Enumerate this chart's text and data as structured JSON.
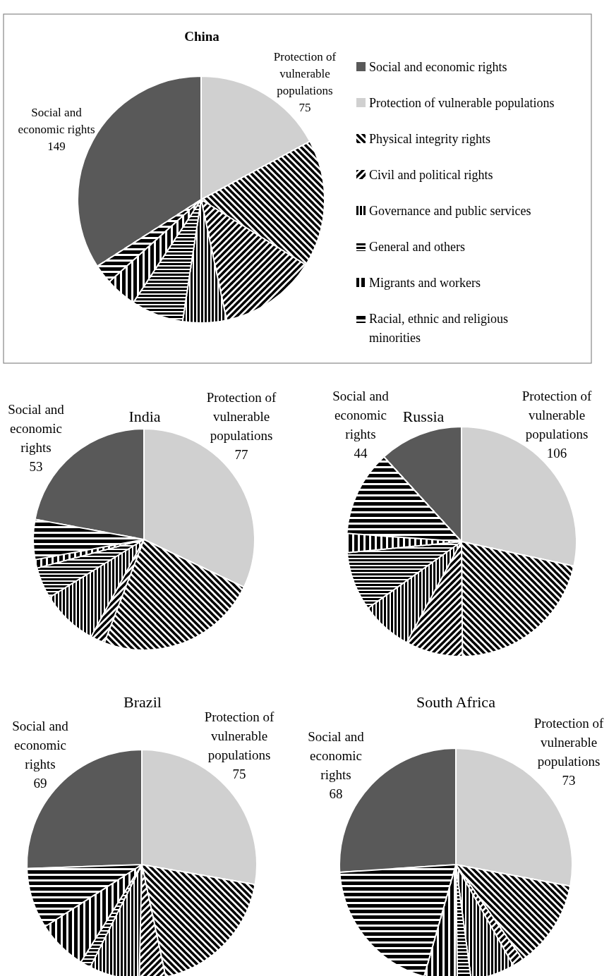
{
  "chart_data": [
    {
      "type": "pie",
      "title": "China",
      "categories": [
        "Social and economic rights",
        "Protection of vulnerable populations",
        "Physical integrity rights",
        "Civil and political rights",
        "Governance and public services",
        "General and others",
        "Migrants and workers",
        "Racial, ethnic and religious minorities"
      ],
      "values": [
        149,
        75,
        73,
        56,
        25,
        30,
        18,
        11
      ],
      "colors": [
        "#595959",
        "#d0d0d0",
        "#000000",
        "#000000",
        "#000000",
        "#000000",
        "#000000",
        "#000000"
      ],
      "value_labels": [
        "149",
        "75",
        null,
        null,
        null,
        null,
        null,
        null
      ],
      "legend": "right"
    },
    {
      "type": "pie",
      "title": "India",
      "categories": [
        "Social and economic rights",
        "Protection of vulnerable populations",
        null,
        null,
        null,
        null,
        null,
        null
      ],
      "values": [
        53,
        77,
        57,
        5,
        20,
        11,
        3,
        14
      ],
      "colors": [
        "#595959",
        "#d0d0d0",
        "#000000",
        "#000000",
        "#000000",
        "#000000",
        "#000000",
        "#000000"
      ],
      "value_labels": [
        "53",
        "77",
        null,
        null,
        null,
        null,
        null,
        null
      ]
    },
    {
      "type": "pie",
      "title": "Russia",
      "categories": [
        "Social and economic rights",
        "Protection of vulnerable populations",
        null,
        null,
        null,
        null,
        null,
        null
      ],
      "values": [
        44,
        106,
        80,
        30,
        27,
        31,
        10,
        45
      ],
      "colors": [
        "#595959",
        "#d0d0d0",
        "#000000",
        "#000000",
        "#000000",
        "#000000",
        "#000000",
        "#000000"
      ],
      "value_labels": [
        "44",
        "106",
        null,
        null,
        null,
        null,
        null,
        null
      ]
    },
    {
      "type": "pie",
      "title": "Brazil",
      "categories": [
        "Social and economic rights",
        "Protection of vulnerable populations",
        null,
        null,
        null,
        null,
        null,
        null
      ],
      "values": [
        69,
        75,
        51,
        10,
        19,
        4,
        19,
        23
      ],
      "colors": [
        "#595959",
        "#d0d0d0",
        "#000000",
        "#000000",
        "#000000",
        "#000000",
        "#000000",
        "#000000"
      ],
      "value_labels": [
        "69",
        "75",
        null,
        null,
        null,
        null,
        null,
        null
      ]
    },
    {
      "type": "pie",
      "title": "South Africa",
      "categories": [
        "Social and economic rights",
        "Protection of vulnerable populations",
        null,
        null,
        null,
        null,
        null,
        null
      ],
      "values": [
        68,
        73,
        32,
        4,
        16,
        5,
        12,
        51
      ],
      "colors": [
        "#595959",
        "#d0d0d0",
        "#000000",
        "#000000",
        "#000000",
        "#000000",
        "#000000",
        "#000000"
      ],
      "value_labels": [
        "68",
        "73",
        null,
        null,
        null,
        null,
        null,
        null
      ]
    }
  ]
}
